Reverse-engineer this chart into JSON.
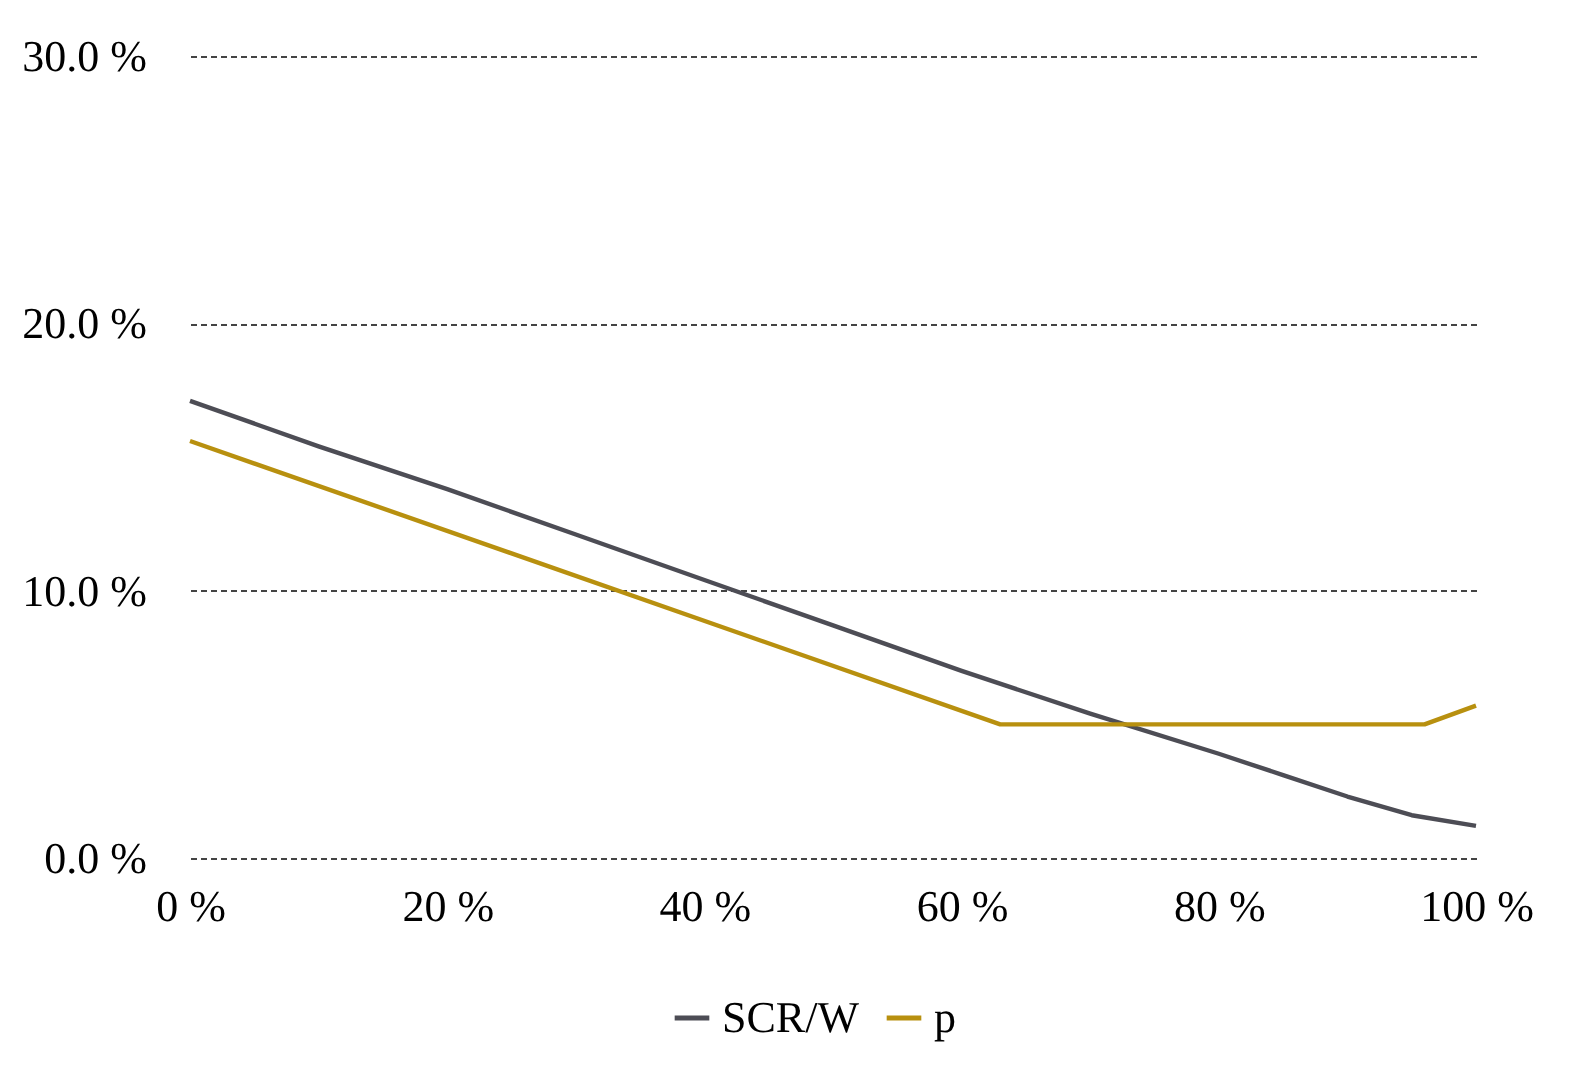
{
  "chart_data": {
    "type": "line",
    "x": [
      0,
      10,
      20,
      30,
      40,
      50,
      60,
      70,
      80,
      85,
      90,
      95,
      100
    ],
    "series": [
      {
        "name": "SCR/W",
        "color": "#4d4d55",
        "values": [
          17.1,
          15.4,
          13.8,
          12.1,
          10.4,
          8.7,
          7.0,
          5.4,
          3.9,
          3.1,
          2.3,
          1.6,
          1.2
        ]
      },
      {
        "name": "p",
        "color": "#b8900f",
        "x": [
          0,
          63,
          96,
          100
        ],
        "values": [
          15.6,
          5.0,
          5.0,
          5.7
        ]
      }
    ],
    "xlim": [
      0,
      100
    ],
    "ylim": [
      0,
      30
    ],
    "xticks": [
      {
        "value": 0,
        "label": "0 %"
      },
      {
        "value": 20,
        "label": "20 %"
      },
      {
        "value": 40,
        "label": "40 %"
      },
      {
        "value": 60,
        "label": "60 %"
      },
      {
        "value": 80,
        "label": "80 %"
      },
      {
        "value": 100,
        "label": "100 %"
      }
    ],
    "yticks": [
      {
        "value": 0,
        "label": "0.0 %"
      },
      {
        "value": 10,
        "label": "10.0 %"
      },
      {
        "value": 20,
        "label": "20.0 %"
      },
      {
        "value": 30,
        "label": "30.0 %"
      }
    ],
    "grid": "y",
    "legend": "bottom",
    "line_style": "solid",
    "marker": "none"
  }
}
